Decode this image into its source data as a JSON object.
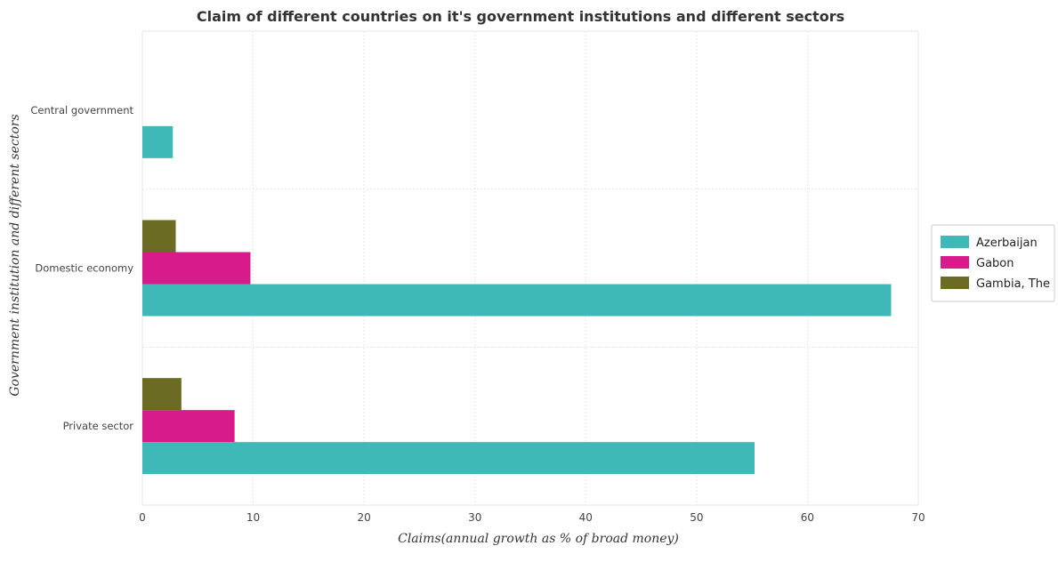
{
  "chart_data": {
    "type": "bar",
    "orientation": "horizontal",
    "title": "Claim of different countries on it's government institutions and different sectors",
    "xlabel": "Claims(annual growth as % of broad money)",
    "ylabel": "Government institution and different sectors",
    "categories": [
      "Central government",
      "Domestic economy",
      "Private sector"
    ],
    "series": [
      {
        "name": "Azerbaijan",
        "color": "#3fb8b8",
        "values": [
          2.75,
          67.55,
          55.23
        ]
      },
      {
        "name": "Gabon",
        "color": "#d81b8a",
        "values": [
          0,
          9.75,
          8.32
        ]
      },
      {
        "name": "Gambia, The",
        "color": "#6b6b23",
        "values": [
          0,
          3.01,
          3.52
        ]
      }
    ],
    "xlim": [
      0,
      70
    ],
    "xticks": [
      0,
      10,
      20,
      30,
      40,
      50,
      60,
      70
    ],
    "grid": true,
    "legend_position": "right"
  }
}
